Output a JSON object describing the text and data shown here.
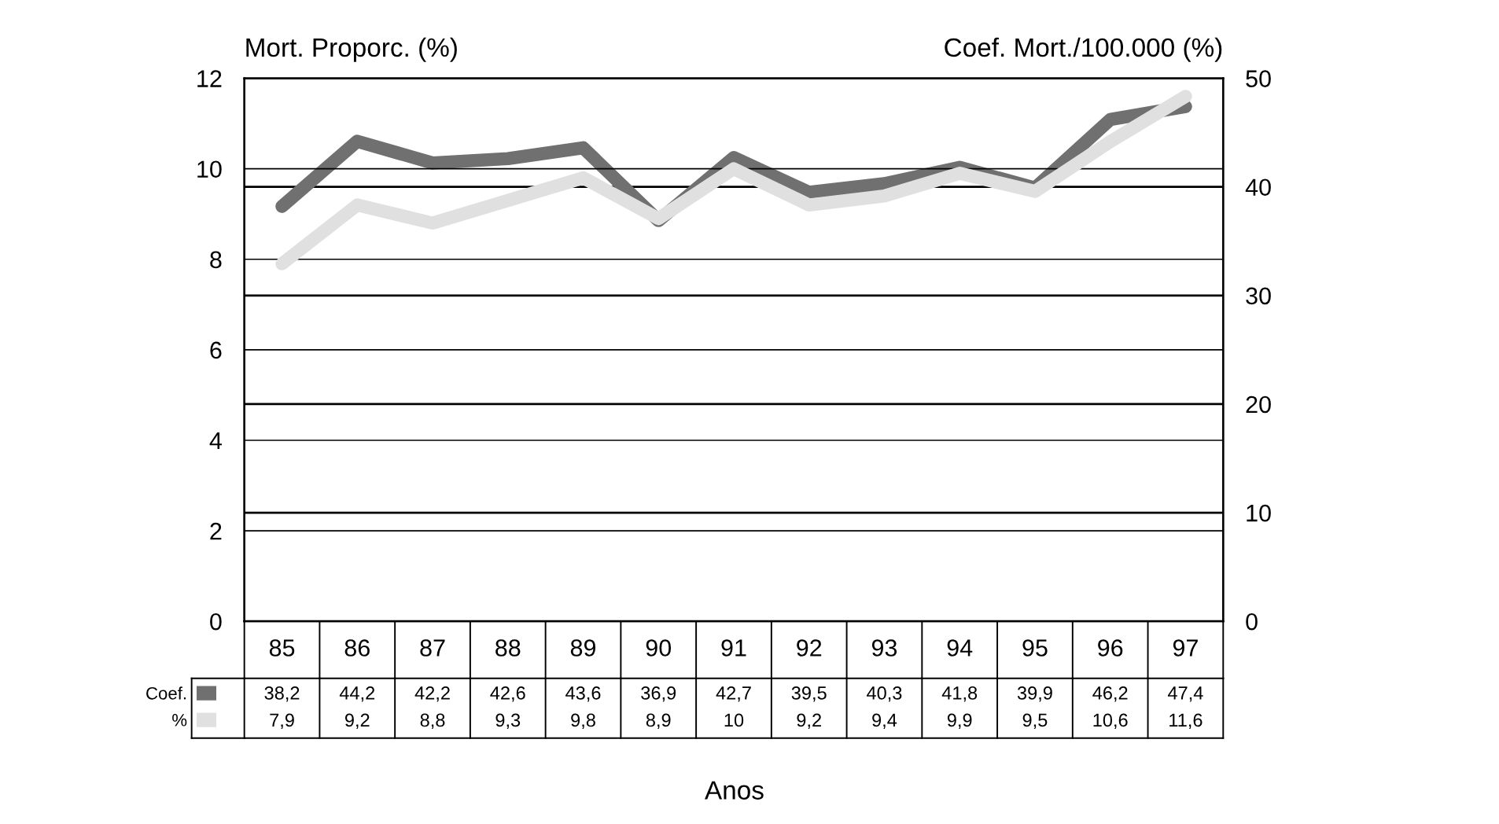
{
  "chart_data": {
    "type": "line",
    "xlabel": "Anos",
    "ylabel": "Mort. Proporc. (%)",
    "y2label": "Coef. Mort./100.000 (%)",
    "categories": [
      "85",
      "86",
      "87",
      "88",
      "89",
      "90",
      "91",
      "92",
      "93",
      "94",
      "95",
      "96",
      "97"
    ],
    "series": [
      {
        "name": "Coef.",
        "color": "#707070",
        "axis": "y2",
        "values": [
          38.2,
          44.2,
          42.2,
          42.6,
          43.6,
          36.9,
          42.7,
          39.5,
          40.3,
          41.8,
          39.9,
          46.2,
          47.4
        ],
        "value_labels": [
          "38,2",
          "44,2",
          "42,2",
          "42,6",
          "43,6",
          "36,9",
          "42,7",
          "39,5",
          "40,3",
          "41,8",
          "39,9",
          "46,2",
          "47,4"
        ]
      },
      {
        "name": "%",
        "color": "#e0e0e0",
        "values": [
          7.9,
          9.2,
          8.8,
          9.3,
          9.8,
          8.9,
          10,
          9.2,
          9.4,
          9.9,
          9.5,
          10.6,
          11.6
        ],
        "value_labels": [
          "7,9",
          "9,2",
          "8,8",
          "9,3",
          "9,8",
          "8,9",
          "10",
          "9,2",
          "9,4",
          "9,9",
          "9,5",
          "10,6",
          "11,6"
        ]
      }
    ],
    "ylim": [
      0,
      12
    ],
    "yticks": [
      0,
      2,
      4,
      6,
      8,
      10,
      12
    ],
    "y2lim": [
      0,
      50
    ],
    "y2ticks": [
      0,
      10,
      20,
      30,
      40,
      50
    ],
    "grid": "y",
    "legend": "bottom",
    "marker": "none",
    "line_style": "solid"
  }
}
